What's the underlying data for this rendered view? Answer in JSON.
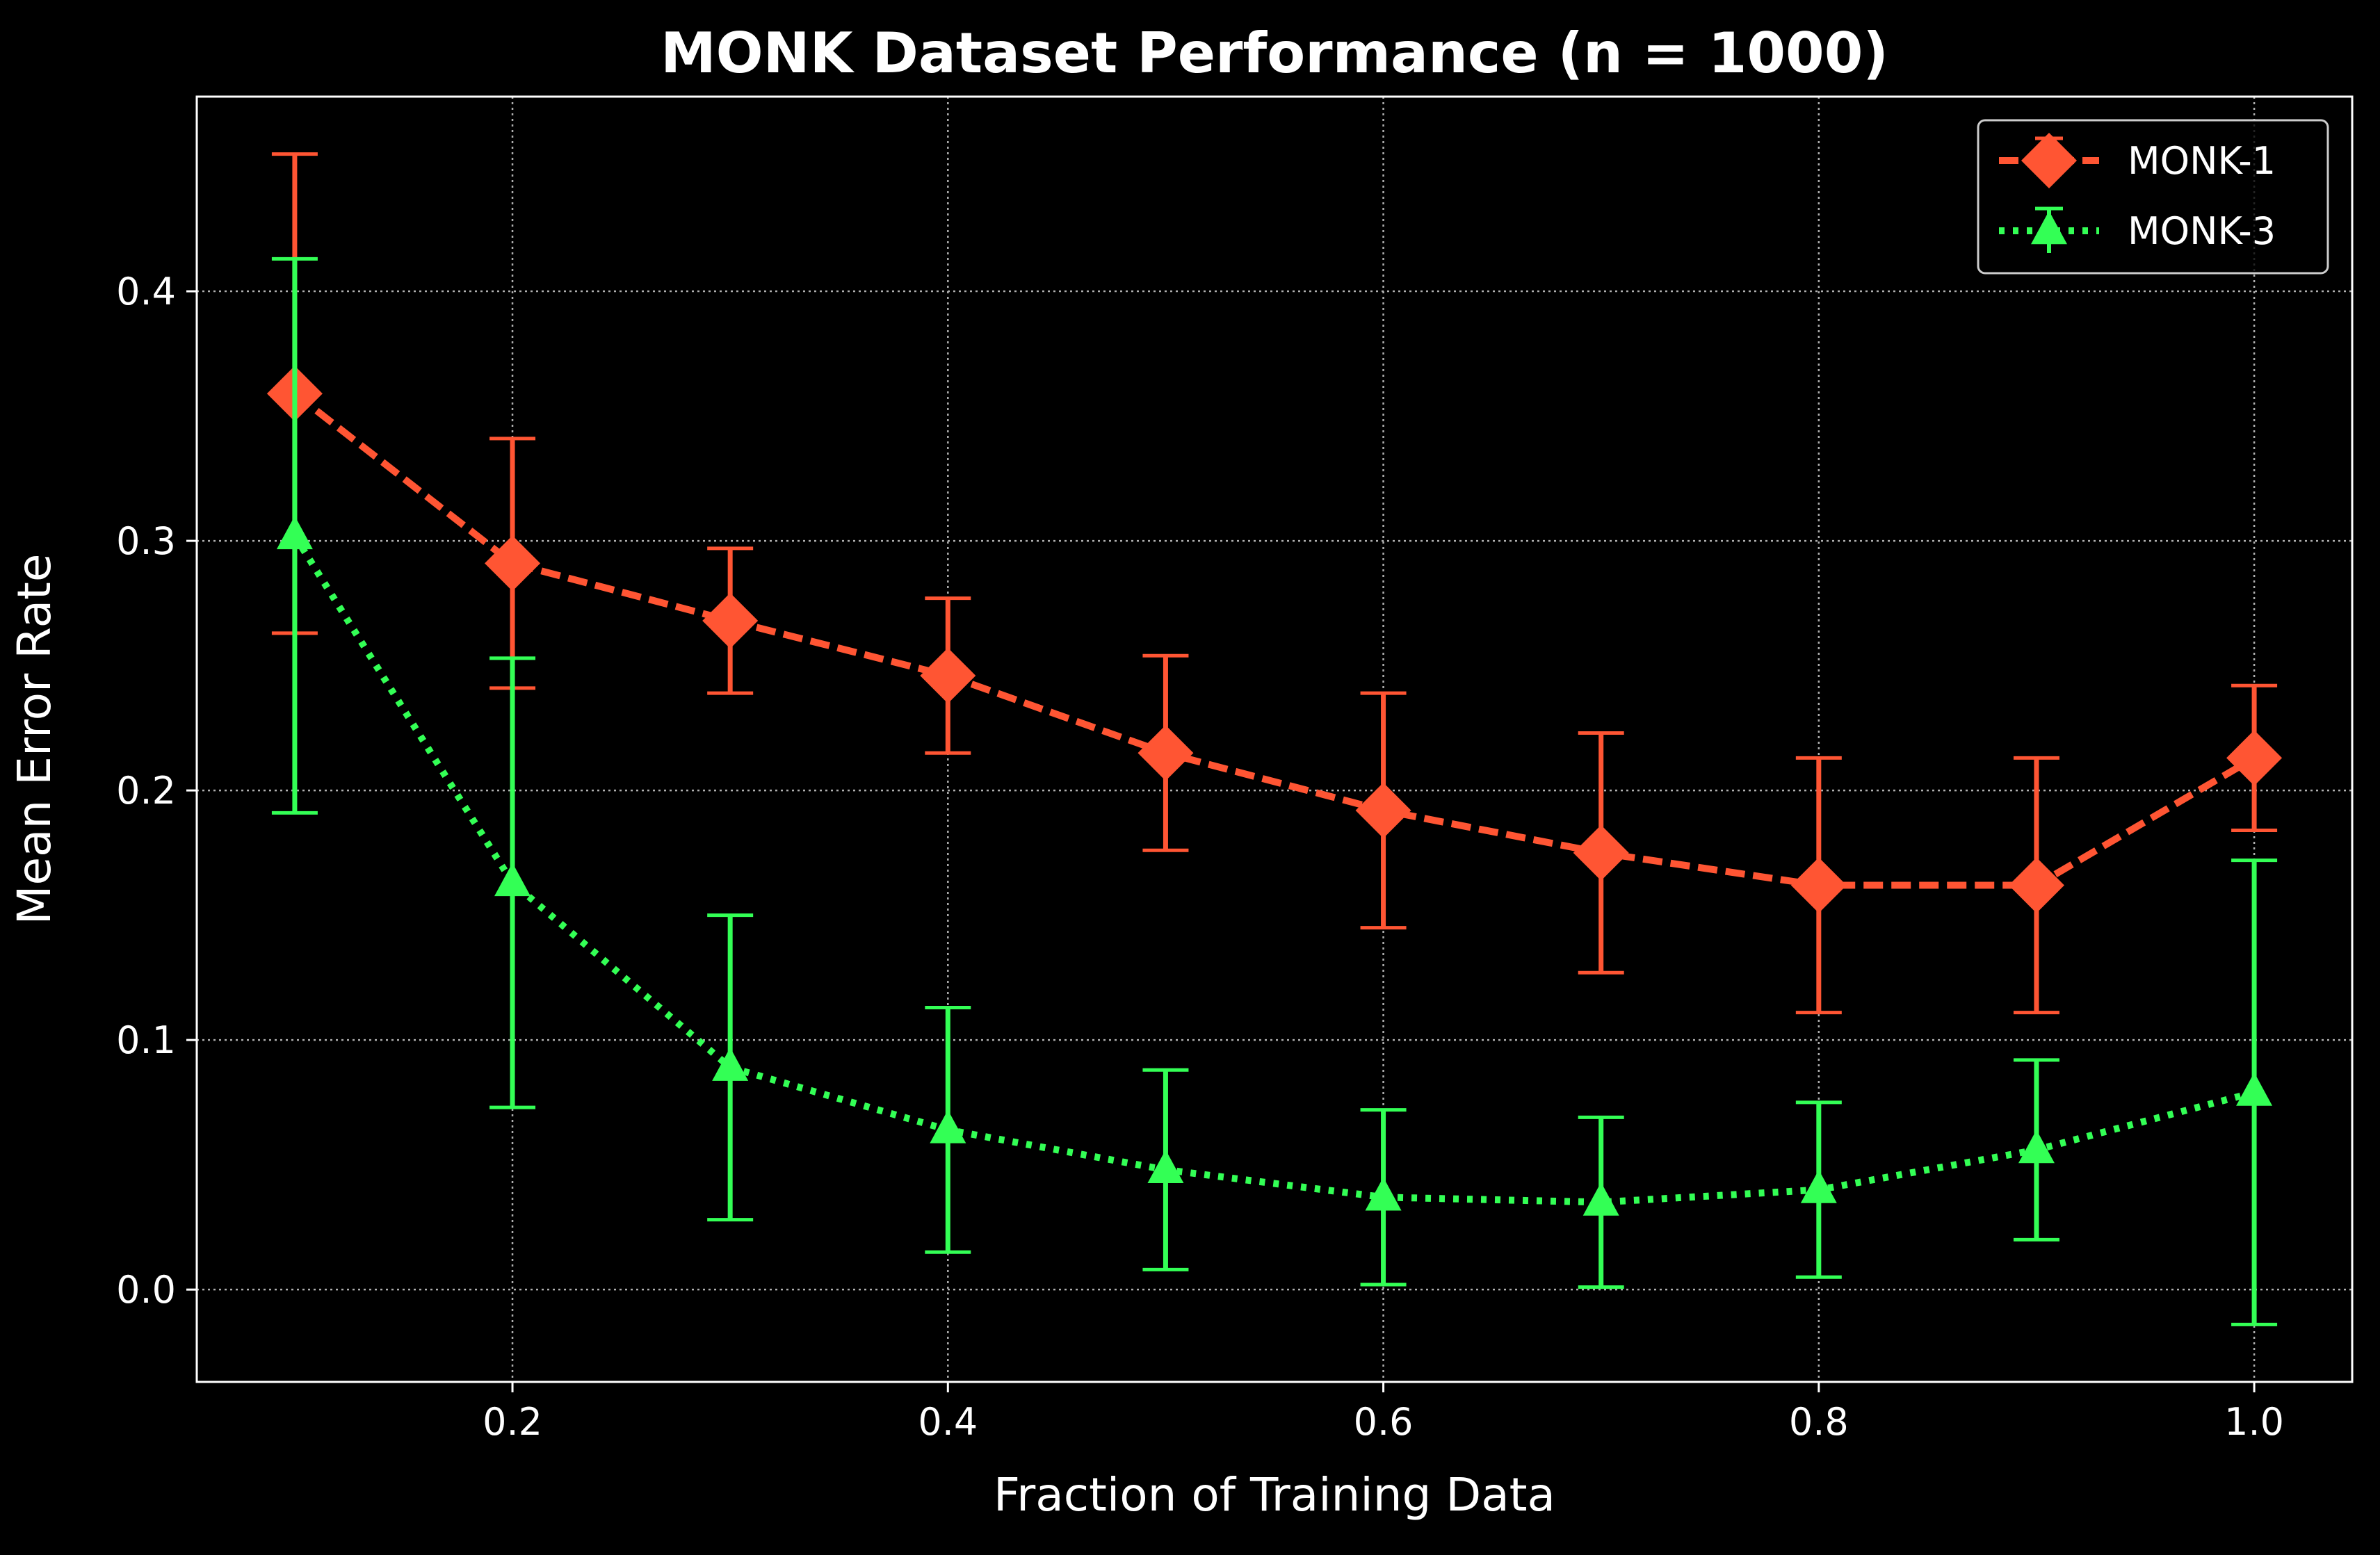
{
  "chart_data": {
    "type": "line",
    "title": "MONK Dataset Performance (n = 1000)",
    "xlabel": "Fraction of Training Data",
    "ylabel": "Mean Error Rate",
    "xlim": [
      0.055,
      1.045
    ],
    "ylim": [
      -0.037,
      0.478
    ],
    "xticks": [
      0.2,
      0.4,
      0.6,
      0.8,
      1.0
    ],
    "xtick_labels": [
      "0.2",
      "0.4",
      "0.6",
      "0.8",
      "1.0"
    ],
    "yticks": [
      0.0,
      0.1,
      0.2,
      0.3,
      0.4
    ],
    "ytick_labels": [
      "0.0",
      "0.1",
      "0.2",
      "0.3",
      "0.4"
    ],
    "grid": true,
    "legend_position": "top-right",
    "x": [
      0.1,
      0.2,
      0.3,
      0.4,
      0.5,
      0.6,
      0.7,
      0.8,
      0.9,
      1.0
    ],
    "series": [
      {
        "name": "MONK-1",
        "color": "#ff5533",
        "marker": "diamond",
        "line_style": "dashed",
        "values": [
          0.359,
          0.291,
          0.268,
          0.246,
          0.215,
          0.192,
          0.175,
          0.162,
          0.162,
          0.213
        ],
        "errors": [
          0.096,
          0.05,
          0.029,
          0.031,
          0.039,
          0.047,
          0.048,
          0.051,
          0.051,
          0.029
        ]
      },
      {
        "name": "MONK-3",
        "color": "#33ff55",
        "marker": "triangle",
        "line_style": "dotted",
        "values": [
          0.302,
          0.163,
          0.089,
          0.064,
          0.048,
          0.037,
          0.035,
          0.04,
          0.056,
          0.079
        ],
        "errors": [
          0.111,
          0.09,
          0.061,
          0.049,
          0.04,
          0.035,
          0.034,
          0.035,
          0.036,
          0.093
        ]
      }
    ]
  }
}
